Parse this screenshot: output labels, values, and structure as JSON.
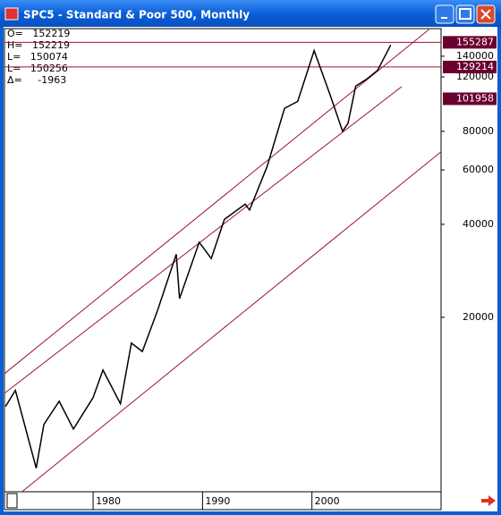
{
  "window": {
    "title": "SPC5 - Standard & Poor 500, Monthly"
  },
  "info": [
    "O=   152219",
    "H=   152219",
    "L=   150074",
    "L=   150256",
    "Δ=     -1963"
  ],
  "chart_data": {
    "type": "line",
    "color": "#000000",
    "log_y": true,
    "grid": false,
    "x": [
      1972.0,
      1972.9,
      1974.8,
      1975.5,
      1976.9,
      1978.2,
      1980.0,
      1980.9,
      1982.5,
      1983.5,
      1984.5,
      1985.9,
      1987.6,
      1987.9,
      1989.7,
      1990.8,
      1992.0,
      1993.9,
      1994.3,
      1995.9,
      1997.5,
      1998.7,
      2000.2,
      2001.7,
      2002.8,
      2003.3,
      2004.0,
      2005.0,
      2006.0,
      2007.2
    ],
    "values": [
      10300,
      11600,
      6500,
      9000,
      10700,
      8700,
      11000,
      13500,
      10500,
      16500,
      15500,
      21100,
      32000,
      23000,
      35000,
      31000,
      41500,
      46500,
      44500,
      61500,
      95000,
      100000,
      146000,
      104000,
      80000,
      85000,
      112000,
      118000,
      126000,
      152219
    ],
    "xlim": [
      1971.9,
      2011.8
    ],
    "ylim": [
      5450,
      172000
    ],
    "xticks": [
      1980,
      1990,
      2000
    ],
    "yticks": [
      20000,
      40000,
      60000,
      80000,
      120000,
      140000
    ],
    "hlines": [
      155287,
      129214
    ],
    "line_color": "#a01030",
    "price_tags": [
      155287,
      129214,
      101958
    ],
    "tag_color": "#6a0030",
    "trendlines": [
      {
        "x": [
          1971.9,
          2010.7
        ],
        "y": [
          13140,
          171000
        ]
      },
      {
        "x": [
          1971.9,
          2008.2
        ],
        "y": [
          11350,
          111600
        ]
      },
      {
        "x": [
          1973.5,
          2011.8
        ],
        "y": [
          5450,
          68700
        ]
      }
    ]
  }
}
